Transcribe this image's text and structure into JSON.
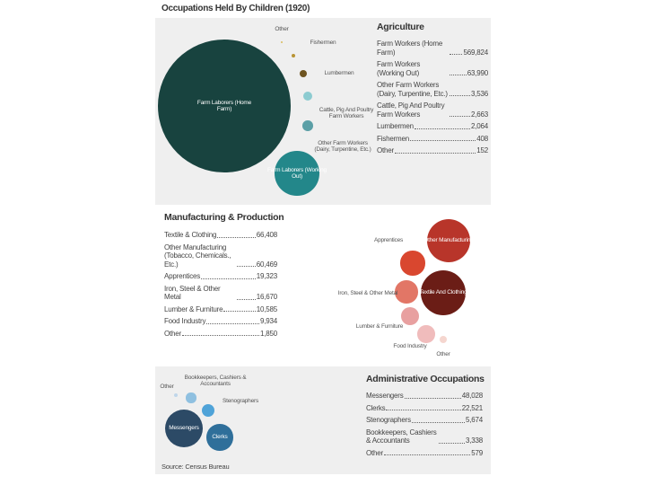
{
  "page_title": "Occupations Held By Children (1920)",
  "source": "Source: Census Bureau",
  "chart_data": [
    {
      "type": "bubble",
      "title": "Agriculture",
      "categories": [
        "Farm Workers (Home Farm)",
        "Farm Workers (Working Out)",
        "Other Farm Workers (Dairy, Turpentine, Etc.)",
        "Cattle, Pig And Poultry Farm Workers",
        "Lumbermen",
        "Fishermen",
        "Other"
      ],
      "bubble_labels": [
        "Farm Laborers (Home Farm)",
        "Farm Laborers (Working Out)",
        "Other Farm Workers (Dairy, Turpentine, Etc.)",
        "Cattle, Pig And Poultry Farm Workers",
        "Lumbermen",
        "Fishermen",
        "Other"
      ],
      "values": [
        569824,
        63990,
        3536,
        2663,
        2064,
        408,
        152
      ],
      "value_labels": [
        "569,824",
        "63,990",
        "3,536",
        "2,663",
        "2,064",
        "408",
        "152"
      ],
      "colors": [
        "#18433f",
        "#23878a",
        "#5b9fa6",
        "#8ccbd0",
        "#6e5420",
        "#b89433",
        "#d9bb5c"
      ]
    },
    {
      "type": "bubble",
      "title": "Manufacturing & Production",
      "categories": [
        "Textile & Clothing",
        "Other Manufacturing (Tobacco, Chemicals., Etc.)",
        "Apprentices",
        "Iron, Steel & Other Metal",
        "Lumber & Furniture",
        "Food Industry",
        "Other"
      ],
      "bubble_labels": [
        "Textile And Clothing",
        "Other Manufacturing",
        "Apprentices",
        "Iron, Steel & Other Metal",
        "Lumber & Furniture",
        "Food Industry",
        "Other"
      ],
      "values": [
        66408,
        60469,
        19323,
        16670,
        10585,
        9934,
        1850
      ],
      "value_labels": [
        "66,408",
        "60,469",
        "19,323",
        "16,670",
        "10,585",
        "9,934",
        "1,850"
      ],
      "colors": [
        "#6b1d16",
        "#b8352a",
        "#d9472f",
        "#e27666",
        "#e8a0a0",
        "#f0bcbc",
        "#f5d6cf"
      ]
    },
    {
      "type": "bubble",
      "title": "Administrative Occupations",
      "categories": [
        "Messengers",
        "Clerks",
        "Stenographers",
        "Bookkeepers, Cashiers & Accountants",
        "Other"
      ],
      "bubble_labels": [
        "Messengers",
        "Clerks",
        "Stenographers",
        "Bookkeepers, Cashiers & Accountants",
        "Other"
      ],
      "values": [
        48028,
        22521,
        5674,
        3338,
        579
      ],
      "value_labels": [
        "48,028",
        "22,521",
        "5,674",
        "3,338",
        "579"
      ],
      "colors": [
        "#2c4a66",
        "#2f6f9a",
        "#4fa3d8",
        "#8fc0e0",
        "#bfd6ea"
      ]
    }
  ]
}
